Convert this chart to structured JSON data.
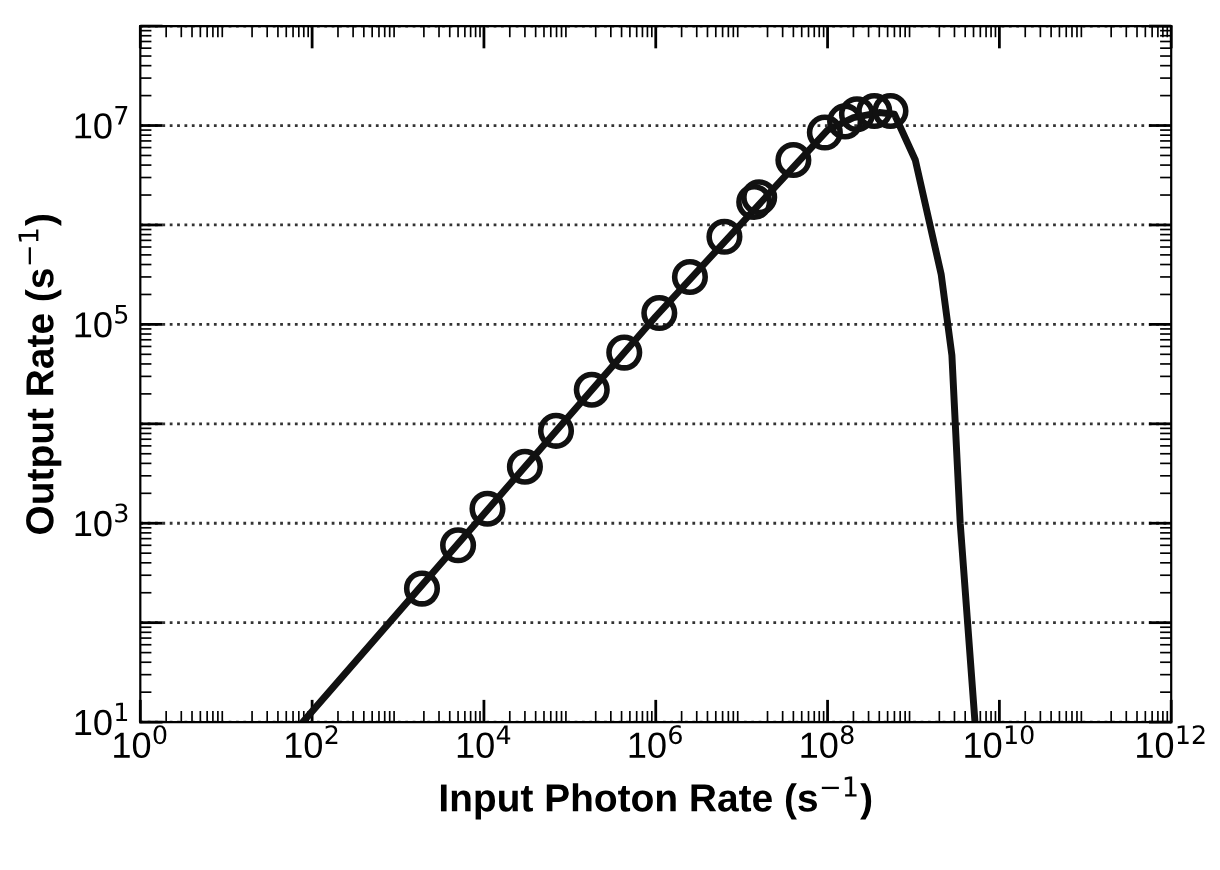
{
  "chart_data": {
    "type": "line",
    "xlabel": "Input Photon Rate (s$^{−1}$)",
    "ylabel": "Output Rate (s$^{−1}$)",
    "log": "xy",
    "grid": "y",
    "xlim": [
      1,
      1000000000000.0
    ],
    "ylim": [
      10,
      100000000.0
    ],
    "xticks": [
      {
        "value": 1,
        "label": "10$^{0}$"
      },
      {
        "value": 100,
        "label": "10$^{2}$"
      },
      {
        "value": 10000,
        "label": "10$^{4}$"
      },
      {
        "value": 1000000,
        "label": "10$^{6}$"
      },
      {
        "value": 100000000,
        "label": "10$^{8}$"
      },
      {
        "value": 10000000000,
        "label": "10$^{10}$"
      },
      {
        "value": 1000000000000,
        "label": "10$^{12}$"
      }
    ],
    "yticks": [
      {
        "value": 10,
        "label": "10$^{1}$"
      },
      {
        "value": 100,
        "label": null
      },
      {
        "value": 1000,
        "label": "10$^{3}$"
      },
      {
        "value": 10000,
        "label": null
      },
      {
        "value": 100000,
        "label": "10$^{5}$"
      },
      {
        "value": 1000000,
        "label": null
      },
      {
        "value": 10000000,
        "label": "10$^{7}$"
      },
      {
        "value": 100000000,
        "label": null
      }
    ],
    "series": [
      {
        "color": "#111111",
        "marker": "none",
        "line_style": "solid",
        "x": [
          78,
          1000000,
          100000000,
          200000000,
          400000000,
          600000000,
          1050000000,
          2100000000,
          2800000000,
          3500000000,
          5200000000
        ],
        "values": [
          10,
          120000,
          9000000,
          12000000,
          13500000,
          13000000,
          4500000,
          320000,
          49000,
          1000,
          10
        ]
      },
      {
        "type": "scatter",
        "color": "#111111",
        "marker": "circle",
        "x": [
          1900,
          5000,
          11000,
          30000,
          69000,
          180000,
          430000,
          1100000,
          2500000,
          6300000,
          14000000,
          16000000,
          40000000,
          93000000,
          160000000,
          220000000,
          350000000,
          540000000
        ],
        "values": [
          220,
          600,
          1400,
          3700,
          8500,
          22000,
          52000,
          130000,
          300000,
          760000,
          1700000,
          1900000,
          4500000,
          8500000,
          11000000,
          13000000,
          14000000,
          14000000
        ]
      }
    ]
  }
}
